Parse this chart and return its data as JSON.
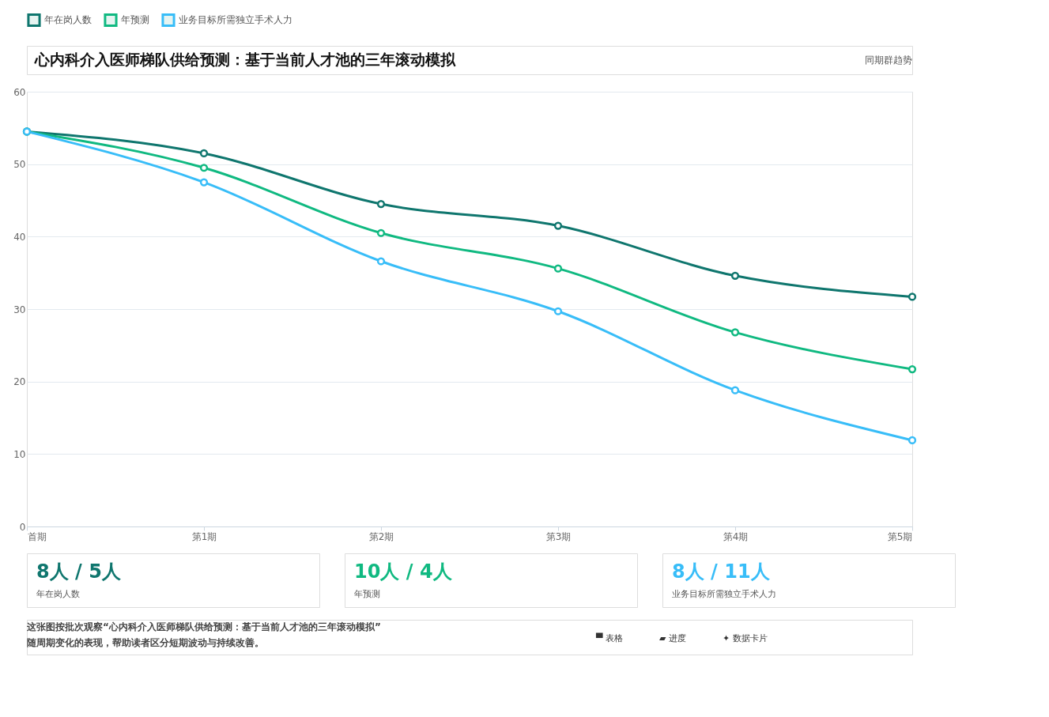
{
  "chart_data": {
    "type": "line",
    "title": "心内科介入医师梯队供给预测：基于当前人才池的三年滚动模拟",
    "categories": [
      "首期",
      "第1期",
      "第2期",
      "第3期",
      "第4期",
      "第5期"
    ],
    "series": [
      {
        "name": "年在岗人数",
        "color": "#0f766e",
        "values": [
          54.5,
          51.5,
          44.5,
          41.5,
          34.6,
          31.7
        ]
      },
      {
        "name": "年预测",
        "color": "#10b981",
        "values": [
          54.5,
          49.5,
          40.5,
          35.6,
          26.8,
          21.7
        ]
      },
      {
        "name": "业务目标所需独立手术人力",
        "color": "#38bdf8",
        "values": [
          54.5,
          47.5,
          36.6,
          29.7,
          18.8,
          11.9
        ]
      }
    ],
    "ylim": [
      0,
      60
    ],
    "yticks": [
      0,
      10,
      20,
      30,
      40,
      50,
      60
    ],
    "grid": "y",
    "legend": "top",
    "marker": "circle",
    "line_style": "solid",
    "annotations": [
      "同期群趋势",
      "8人 / 5人",
      "年在岗人数",
      "10人 / 4人",
      "年预测",
      "8人 / 11人",
      "业务目标所需独立手术人力",
      "这张图按批次观察“心内科介入医师梯队供给预测：基于当前人才池的三年滚动模拟”随周期变化的表现，帮助读者区分短期波动与持续改善。",
      "▀ 表格",
      "▰ 进度",
      "✦ 数据卡片"
    ]
  }
}
